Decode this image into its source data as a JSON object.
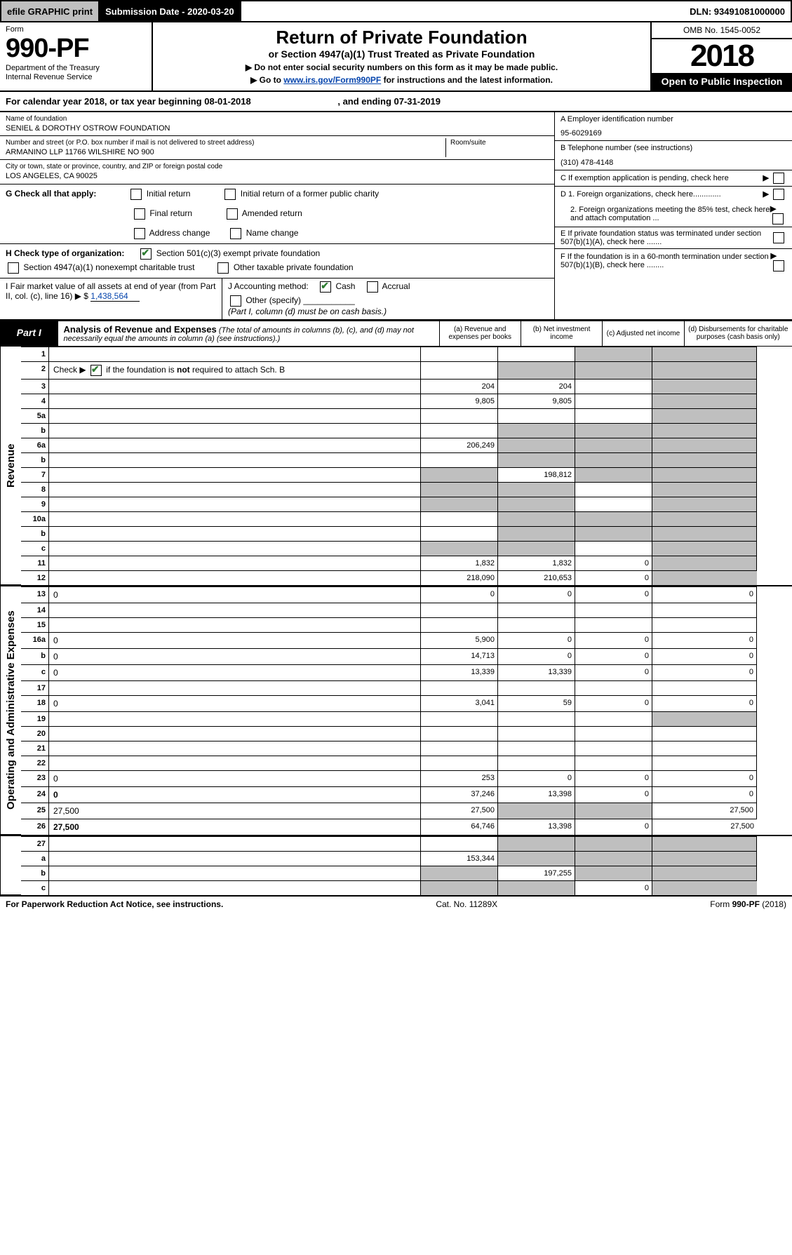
{
  "topbar": {
    "efile": "efile GRAPHIC print",
    "submission": "Submission Date - 2020-03-20",
    "dln": "DLN: 93491081000000"
  },
  "header": {
    "form_label": "Form",
    "form_number": "990-PF",
    "dept1": "Department of the Treasury",
    "dept2": "Internal Revenue Service",
    "title": "Return of Private Foundation",
    "subtitle": "or Section 4947(a)(1) Trust Treated as Private Foundation",
    "instr1": "▶ Do not enter social security numbers on this form as it may be made public.",
    "instr2_pre": "▶ Go to ",
    "instr2_link": "www.irs.gov/Form990PF",
    "instr2_post": " for instructions and the latest information.",
    "omb": "OMB No. 1545-0052",
    "year": "2018",
    "open_public": "Open to Public Inspection"
  },
  "cal_year": {
    "text_pre": "For calendar year 2018, or tax year beginning ",
    "begin": "08-01-2018",
    "text_mid": " , and ending ",
    "end": "07-31-2019"
  },
  "foundation": {
    "name_lbl": "Name of foundation",
    "name": "SENIEL & DOROTHY OSTROW FOUNDATION",
    "addr_lbl": "Number and street (or P.O. box number if mail is not delivered to street address)",
    "addr": "ARMANINO LLP 11766 WILSHIRE NO 900",
    "room_lbl": "Room/suite",
    "city_lbl": "City or town, state or province, country, and ZIP or foreign postal code",
    "city": "LOS ANGELES, CA  90025"
  },
  "right_info": {
    "a_lbl": "A Employer identification number",
    "a_val": "95-6029169",
    "b_lbl": "B Telephone number (see instructions)",
    "b_val": "(310) 478-4148",
    "c_lbl": "C If exemption application is pending, check here",
    "d1": "D 1. Foreign organizations, check here.............",
    "d2": "2. Foreign organizations meeting the 85% test, check here and attach computation ...",
    "e_lbl": "E  If private foundation status was terminated under section 507(b)(1)(A), check here .......",
    "f_lbl": "F  If the foundation is in a 60-month termination under section 507(b)(1)(B), check here ........"
  },
  "g": {
    "lbl": "G Check all that apply:",
    "o1": "Initial return",
    "o2": "Initial return of a former public charity",
    "o3": "Final return",
    "o4": "Amended return",
    "o5": "Address change",
    "o6": "Name change"
  },
  "h": {
    "lbl": "H Check type of organization:",
    "o1": "Section 501(c)(3) exempt private foundation",
    "o2": "Section 4947(a)(1) nonexempt charitable trust",
    "o3": "Other taxable private foundation"
  },
  "i": {
    "lbl": "I Fair market value of all assets at end of year (from Part II, col. (c), line 16) ▶ $",
    "val": "1,438,564"
  },
  "j": {
    "lbl": "J Accounting method:",
    "o1": "Cash",
    "o2": "Accrual",
    "o3": "Other (specify)",
    "note": "(Part I, column (d) must be on cash basis.)"
  },
  "part1": {
    "label": "Part I",
    "title": "Analysis of Revenue and Expenses",
    "title_note": "(The total of amounts in columns (b), (c), and (d) may not necessarily equal the amounts in column (a) (see instructions).)",
    "col_a": "(a)   Revenue and expenses per books",
    "col_b": "(b)   Net investment income",
    "col_c": "(c)   Adjusted net income",
    "col_d": "(d)   Disbursements for charitable purposes (cash basis only)"
  },
  "side": {
    "revenue": "Revenue",
    "opex": "Operating and Administrative Expenses"
  },
  "rows": [
    {
      "n": "1",
      "d": "",
      "a": "",
      "b": "",
      "c": "",
      "sb": false,
      "sc": true,
      "sd": true
    },
    {
      "n": "2",
      "d": "",
      "a": "",
      "b": "",
      "c": "",
      "sb": true,
      "sc": true,
      "sd": true,
      "checked": true
    },
    {
      "n": "3",
      "d": "",
      "a": "204",
      "b": "204",
      "c": "",
      "sb": false,
      "sc": false,
      "sd": true
    },
    {
      "n": "4",
      "d": "",
      "a": "9,805",
      "b": "9,805",
      "c": "",
      "sb": false,
      "sc": false,
      "sd": true
    },
    {
      "n": "5a",
      "d": "",
      "a": "",
      "b": "",
      "c": "",
      "sb": false,
      "sc": false,
      "sd": true
    },
    {
      "n": "b",
      "d": "",
      "a": "",
      "b": "",
      "c": "",
      "sb": true,
      "sc": true,
      "sd": true
    },
    {
      "n": "6a",
      "d": "",
      "a": "206,249",
      "b": "",
      "c": "",
      "sb": true,
      "sc": true,
      "sd": true
    },
    {
      "n": "b",
      "d": "",
      "a": "",
      "b": "",
      "c": "",
      "sb": true,
      "sc": true,
      "sd": true
    },
    {
      "n": "7",
      "d": "",
      "a": "",
      "b": "198,812",
      "c": "",
      "sa": true,
      "sb": false,
      "sc": true,
      "sd": true
    },
    {
      "n": "8",
      "d": "",
      "a": "",
      "b": "",
      "c": "",
      "sa": true,
      "sb": true,
      "sc": false,
      "sd": true
    },
    {
      "n": "9",
      "d": "",
      "a": "",
      "b": "",
      "c": "",
      "sa": true,
      "sb": true,
      "sc": false,
      "sd": true
    },
    {
      "n": "10a",
      "d": "",
      "a": "",
      "b": "",
      "c": "",
      "sb": true,
      "sc": true,
      "sd": true
    },
    {
      "n": "b",
      "d": "",
      "a": "",
      "b": "",
      "c": "",
      "sb": true,
      "sc": true,
      "sd": true
    },
    {
      "n": "c",
      "d": "",
      "a": "",
      "b": "",
      "c": "",
      "sa": true,
      "sb": true,
      "sc": false,
      "sd": true
    },
    {
      "n": "11",
      "d": "",
      "a": "1,832",
      "b": "1,832",
      "c": "0",
      "sb": false,
      "sc": false,
      "sd": true
    },
    {
      "n": "12",
      "d": "",
      "a": "218,090",
      "b": "210,653",
      "c": "0",
      "bold": true,
      "sb": false,
      "sc": false,
      "sd": true
    }
  ],
  "rows2": [
    {
      "n": "13",
      "d": "0",
      "a": "0",
      "b": "0",
      "c": "0"
    },
    {
      "n": "14",
      "d": "",
      "a": "",
      "b": "",
      "c": ""
    },
    {
      "n": "15",
      "d": "",
      "a": "",
      "b": "",
      "c": ""
    },
    {
      "n": "16a",
      "d": "0",
      "a": "5,900",
      "b": "0",
      "c": "0"
    },
    {
      "n": "b",
      "d": "0",
      "a": "14,713",
      "b": "0",
      "c": "0"
    },
    {
      "n": "c",
      "d": "0",
      "a": "13,339",
      "b": "13,339",
      "c": "0"
    },
    {
      "n": "17",
      "d": "",
      "a": "",
      "b": "",
      "c": ""
    },
    {
      "n": "18",
      "d": "0",
      "a": "3,041",
      "b": "59",
      "c": "0"
    },
    {
      "n": "19",
      "d": "",
      "a": "",
      "b": "",
      "c": "",
      "sd": true
    },
    {
      "n": "20",
      "d": "",
      "a": "",
      "b": "",
      "c": ""
    },
    {
      "n": "21",
      "d": "",
      "a": "",
      "b": "",
      "c": ""
    },
    {
      "n": "22",
      "d": "",
      "a": "",
      "b": "",
      "c": ""
    },
    {
      "n": "23",
      "d": "0",
      "a": "253",
      "b": "0",
      "c": "0"
    },
    {
      "n": "24",
      "d": "0",
      "a": "37,246",
      "b": "13,398",
      "c": "0",
      "bold": true
    },
    {
      "n": "25",
      "d": "27,500",
      "a": "27,500",
      "b": "",
      "c": "",
      "sb": true,
      "sc": true
    },
    {
      "n": "26",
      "d": "27,500",
      "a": "64,746",
      "b": "13,398",
      "c": "0",
      "bold": true
    }
  ],
  "rows3": [
    {
      "n": "27",
      "d": "",
      "a": "",
      "b": "",
      "c": "",
      "sb": true,
      "sc": true,
      "sd": true
    },
    {
      "n": "a",
      "d": "",
      "a": "153,344",
      "b": "",
      "c": "",
      "bold": true,
      "sb": true,
      "sc": true,
      "sd": true
    },
    {
      "n": "b",
      "d": "",
      "a": "",
      "b": "197,255",
      "c": "",
      "bold": true,
      "sa": true,
      "sc": true,
      "sd": true
    },
    {
      "n": "c",
      "d": "",
      "a": "",
      "b": "",
      "c": "0",
      "bold": true,
      "sa": true,
      "sb": true,
      "sd": true
    }
  ],
  "footer": {
    "left": "For Paperwork Reduction Act Notice, see instructions.",
    "mid": "Cat. No. 11289X",
    "right": "Form 990-PF (2018)"
  }
}
